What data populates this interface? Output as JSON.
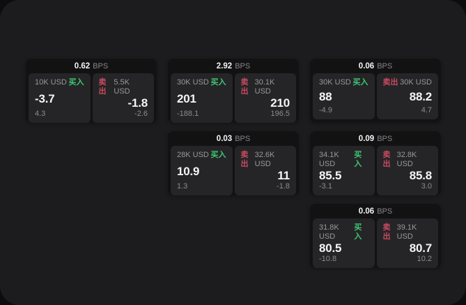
{
  "labels": {
    "bps_unit": "BPS",
    "buy": "买入",
    "sell": "卖出"
  },
  "colors": {
    "page_background": "#1c1c1e",
    "card_background": "#121213",
    "panel_background": "#252527",
    "buy_accent": "#3ec773",
    "sell_accent": "#c94a60"
  },
  "cards": [
    {
      "bps": "0.62",
      "buy": {
        "notional": "10K USD",
        "price": "-3.7",
        "sub": "4.3"
      },
      "sell": {
        "notional": "5.5K USD",
        "price": "-1.8",
        "sub": "-2.6"
      }
    },
    {
      "bps": "2.92",
      "buy": {
        "notional": "30K USD",
        "price": "201",
        "sub": "-188.1"
      },
      "sell": {
        "notional": "30.1K USD",
        "price": "210",
        "sub": "196.5"
      }
    },
    {
      "bps": "0.06",
      "buy": {
        "notional": "30K USD",
        "price": "88",
        "sub": "-4.9"
      },
      "sell": {
        "notional": "30K USD",
        "price": "88.2",
        "sub": "4.7"
      }
    },
    {
      "bps": "0.03",
      "buy": {
        "notional": "28K USD",
        "price": "10.9",
        "sub": "1.3"
      },
      "sell": {
        "notional": "32.6K USD",
        "price": "11",
        "sub": "-1.8"
      }
    },
    {
      "bps": "0.09",
      "buy": {
        "notional": "34.1K USD",
        "price": "85.5",
        "sub": "-3.1"
      },
      "sell": {
        "notional": "32.8K USD",
        "price": "85.8",
        "sub": "3.0"
      }
    },
    {
      "bps": "0.06",
      "buy": {
        "notional": "31.8K USD",
        "price": "80.5",
        "sub": "-10.8"
      },
      "sell": {
        "notional": "39.1K USD",
        "price": "80.7",
        "sub": "10.2"
      }
    }
  ]
}
